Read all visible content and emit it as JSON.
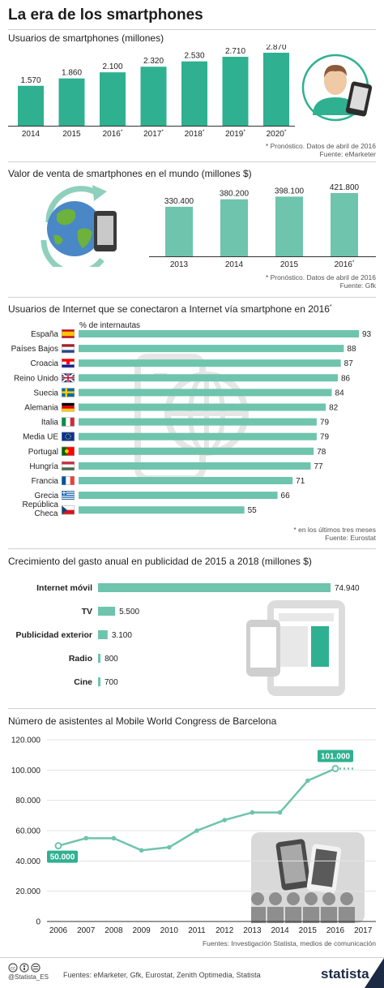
{
  "title": "La era de los smartphones",
  "colors": {
    "green": "#2fb091",
    "light_green": "#6ec4ac",
    "dark": "#1d1d1d"
  },
  "section1": {
    "title": "Usuarios de smartphones (millones)",
    "note1": "* Pronóstico. Datos de abril de 2016",
    "note2": "Fuente: eMarketer",
    "icon": "person-with-phone-icon"
  },
  "section2": {
    "title": "Valor de venta de smartphones en el mundo (millones $)",
    "note1": "* Pronóstico. Datos de abril de 2016",
    "note2": "Fuente: Gfk",
    "icon": "globe-with-phone-icon"
  },
  "section3": {
    "title": "Usuarios de Internet que se conectaron a Internet vía smartphone en 2016",
    "title_mark": "*",
    "unit_label": "% de internautas",
    "note1": "* en los últimos tres meses",
    "note2": "Fuente: Eurostat",
    "icon": "phone-globe-watermark-icon"
  },
  "section4": {
    "title": "Crecimiento del gasto anual en publicidad de 2015 a 2018 (millones $)",
    "icon": "tablet-and-phone-icon"
  },
  "section5": {
    "title": "Número de asistentes al Mobile World Congress de Barcelona",
    "note": "Fuentes: Investigación Statista, medios de comunicación",
    "first_callout": "50.000",
    "last_callout": "101.000",
    "icon": "audience-with-phones-icon"
  },
  "footer": {
    "handle": "@Statista_ES",
    "sources": "Fuentes: eMarketer, Gfk, Eurostat, Zenith Optimedia, Statista",
    "brand": "statista",
    "icons": [
      "cc-icon",
      "person-icon",
      "equals-icon"
    ]
  },
  "chart_data": [
    {
      "type": "bar",
      "title": "Usuarios de smartphones (millones)",
      "categories": [
        "2014",
        "2015",
        "2016*",
        "2017*",
        "2018*",
        "2019*",
        "2020*"
      ],
      "values": [
        1570,
        1860,
        2100,
        2320,
        2530,
        2710,
        2870
      ],
      "value_labels": [
        "1.570",
        "1.860",
        "2.100",
        "2.320",
        "2.530",
        "2.710",
        "2.870"
      ],
      "ylim": [
        0,
        2870
      ]
    },
    {
      "type": "bar",
      "title": "Valor de venta de smartphones en el mundo (millones $)",
      "categories": [
        "2013",
        "2014",
        "2015",
        "2016*"
      ],
      "values": [
        330400,
        380200,
        398100,
        421800
      ],
      "value_labels": [
        "330.400",
        "380.200",
        "398.100",
        "421.800"
      ],
      "ylim": [
        0,
        421800
      ]
    },
    {
      "type": "bar",
      "orientation": "horizontal",
      "title": "Usuarios de Internet que se conectaron a Internet vía smartphone en 2016*",
      "categories": [
        "España",
        "Países Bajos",
        "Croacia",
        "Reino Unido",
        "Suecia",
        "Alemania",
        "Italia",
        "Media UE",
        "Portugal",
        "Hungría",
        "Francia",
        "Grecia",
        "República Checa"
      ],
      "flags": [
        "es",
        "nl",
        "hr",
        "gb",
        "se",
        "de",
        "it",
        "eu",
        "pt",
        "hu",
        "fr",
        "gr",
        "cz"
      ],
      "values": [
        93,
        88,
        87,
        86,
        84,
        82,
        79,
        79,
        78,
        77,
        71,
        66,
        55
      ],
      "value_labels": [
        "93",
        "88",
        "87",
        "86",
        "84",
        "82",
        "79",
        "79",
        "78",
        "77",
        "71",
        "66",
        "55"
      ],
      "xlabel": "% de internautas",
      "xlim": [
        0,
        93
      ]
    },
    {
      "type": "bar",
      "orientation": "horizontal",
      "title": "Crecimiento del gasto anual en publicidad de 2015 a 2018 (millones $)",
      "categories": [
        "Internet móvil",
        "TV",
        "Publicidad exterior",
        "Radio",
        "Cine"
      ],
      "values": [
        74940,
        5500,
        3100,
        800,
        700
      ],
      "value_labels": [
        "74.940",
        "5.500",
        "3.100",
        "800",
        "700"
      ],
      "xlim": [
        0,
        74940
      ]
    },
    {
      "type": "line",
      "title": "Número de asistentes al Mobile World Congress de Barcelona",
      "x": [
        "2006",
        "2007",
        "2008",
        "2009",
        "2010",
        "2011",
        "2012",
        "2013",
        "2014",
        "2015",
        "2016",
        "2017"
      ],
      "values": [
        50000,
        55000,
        55000,
        47000,
        49000,
        60000,
        67000,
        72000,
        72000,
        93000,
        101000,
        101000
      ],
      "projected_from_index": 10,
      "yticks": [
        "0",
        "20.000",
        "40.000",
        "60.000",
        "80.000",
        "100.000",
        "120.000"
      ],
      "ylim": [
        0,
        120000
      ],
      "grid": true
    }
  ]
}
